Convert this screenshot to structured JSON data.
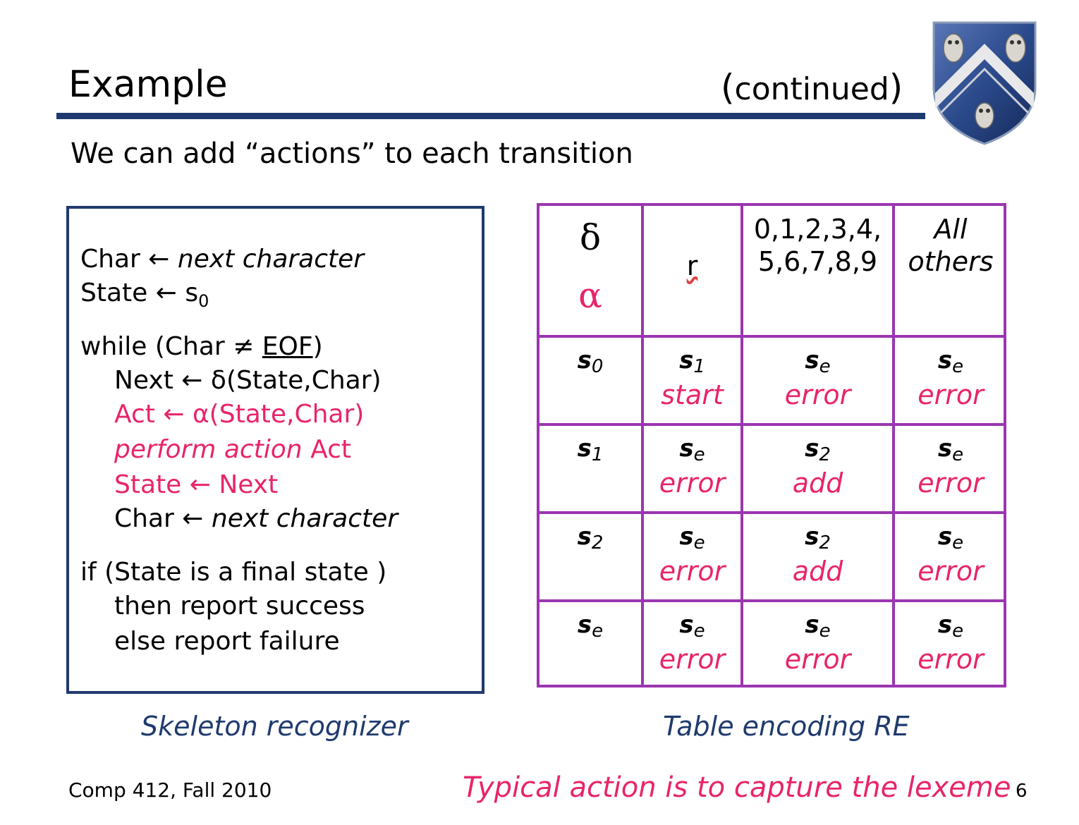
{
  "slide": {
    "title": "Example",
    "title_suffix_open": "(",
    "title_suffix": "continued",
    "title_suffix_close": ")",
    "subtitle": "We can add “actions” to each transition"
  },
  "code": {
    "l1_a": "Char ← ",
    "l1_b": "next character",
    "l2_a": "State ← s",
    "l2_sub": "0",
    "l3_a": "while (Char ≠ ",
    "l3_b": "EOF",
    "l3_c": ")",
    "l4": "Next ← δ(State,Char)",
    "l5": "Act    ← α(State,Char)",
    "l6_a": "perform action",
    "l6_b": " Act",
    "l7": "State ← Next",
    "l8_a": "Char ← ",
    "l8_b": "next character",
    "l9": "if (State is a final state )",
    "l10": "then report success",
    "l11": "else  report failure"
  },
  "table": {
    "corner_top": "δ",
    "corner_bottom": "α",
    "col1": "r",
    "col2_line1": "0,1,2,3,4,",
    "col2_line2": "5,6,7,8,9",
    "col3_line1": "All",
    "col3_line2": "others",
    "rows": [
      {
        "state": "s",
        "sub": "0",
        "c1_s": "s",
        "c1_sub": "1",
        "c1_act": "start",
        "c2_s": "s",
        "c2_sub": "e",
        "c2_act": "error",
        "c3_s": "s",
        "c3_sub": "e",
        "c3_act": "error"
      },
      {
        "state": "s",
        "sub": "1",
        "c1_s": "s",
        "c1_sub": "e",
        "c1_act": "error",
        "c2_s": "s",
        "c2_sub": "2",
        "c2_act": "add",
        "c3_s": "s",
        "c3_sub": "e",
        "c3_act": "error"
      },
      {
        "state": "s",
        "sub": "2",
        "c1_s": "s",
        "c1_sub": "e",
        "c1_act": "error",
        "c2_s": "s",
        "c2_sub": "2",
        "c2_act": "add",
        "c3_s": "s",
        "c3_sub": "e",
        "c3_act": "error"
      },
      {
        "state": "s",
        "sub": "e",
        "c1_s": "s",
        "c1_sub": "e",
        "c1_act": "error",
        "c2_s": "s",
        "c2_sub": "e",
        "c2_act": "error",
        "c3_s": "s",
        "c3_sub": "e",
        "c3_act": "error"
      }
    ]
  },
  "captions": {
    "left": "Skeleton recognizer",
    "right": "Table encoding RE",
    "note": "Typical action is to capture the lexeme"
  },
  "footer": {
    "course": "Comp 412, Fall 2010",
    "page": "6"
  },
  "colors": {
    "navy": "#1f3a6e",
    "action_red": "#e8246a",
    "table_purple": "#9b35b0"
  },
  "icons": {
    "logo": "rice-university-shield-icon"
  }
}
